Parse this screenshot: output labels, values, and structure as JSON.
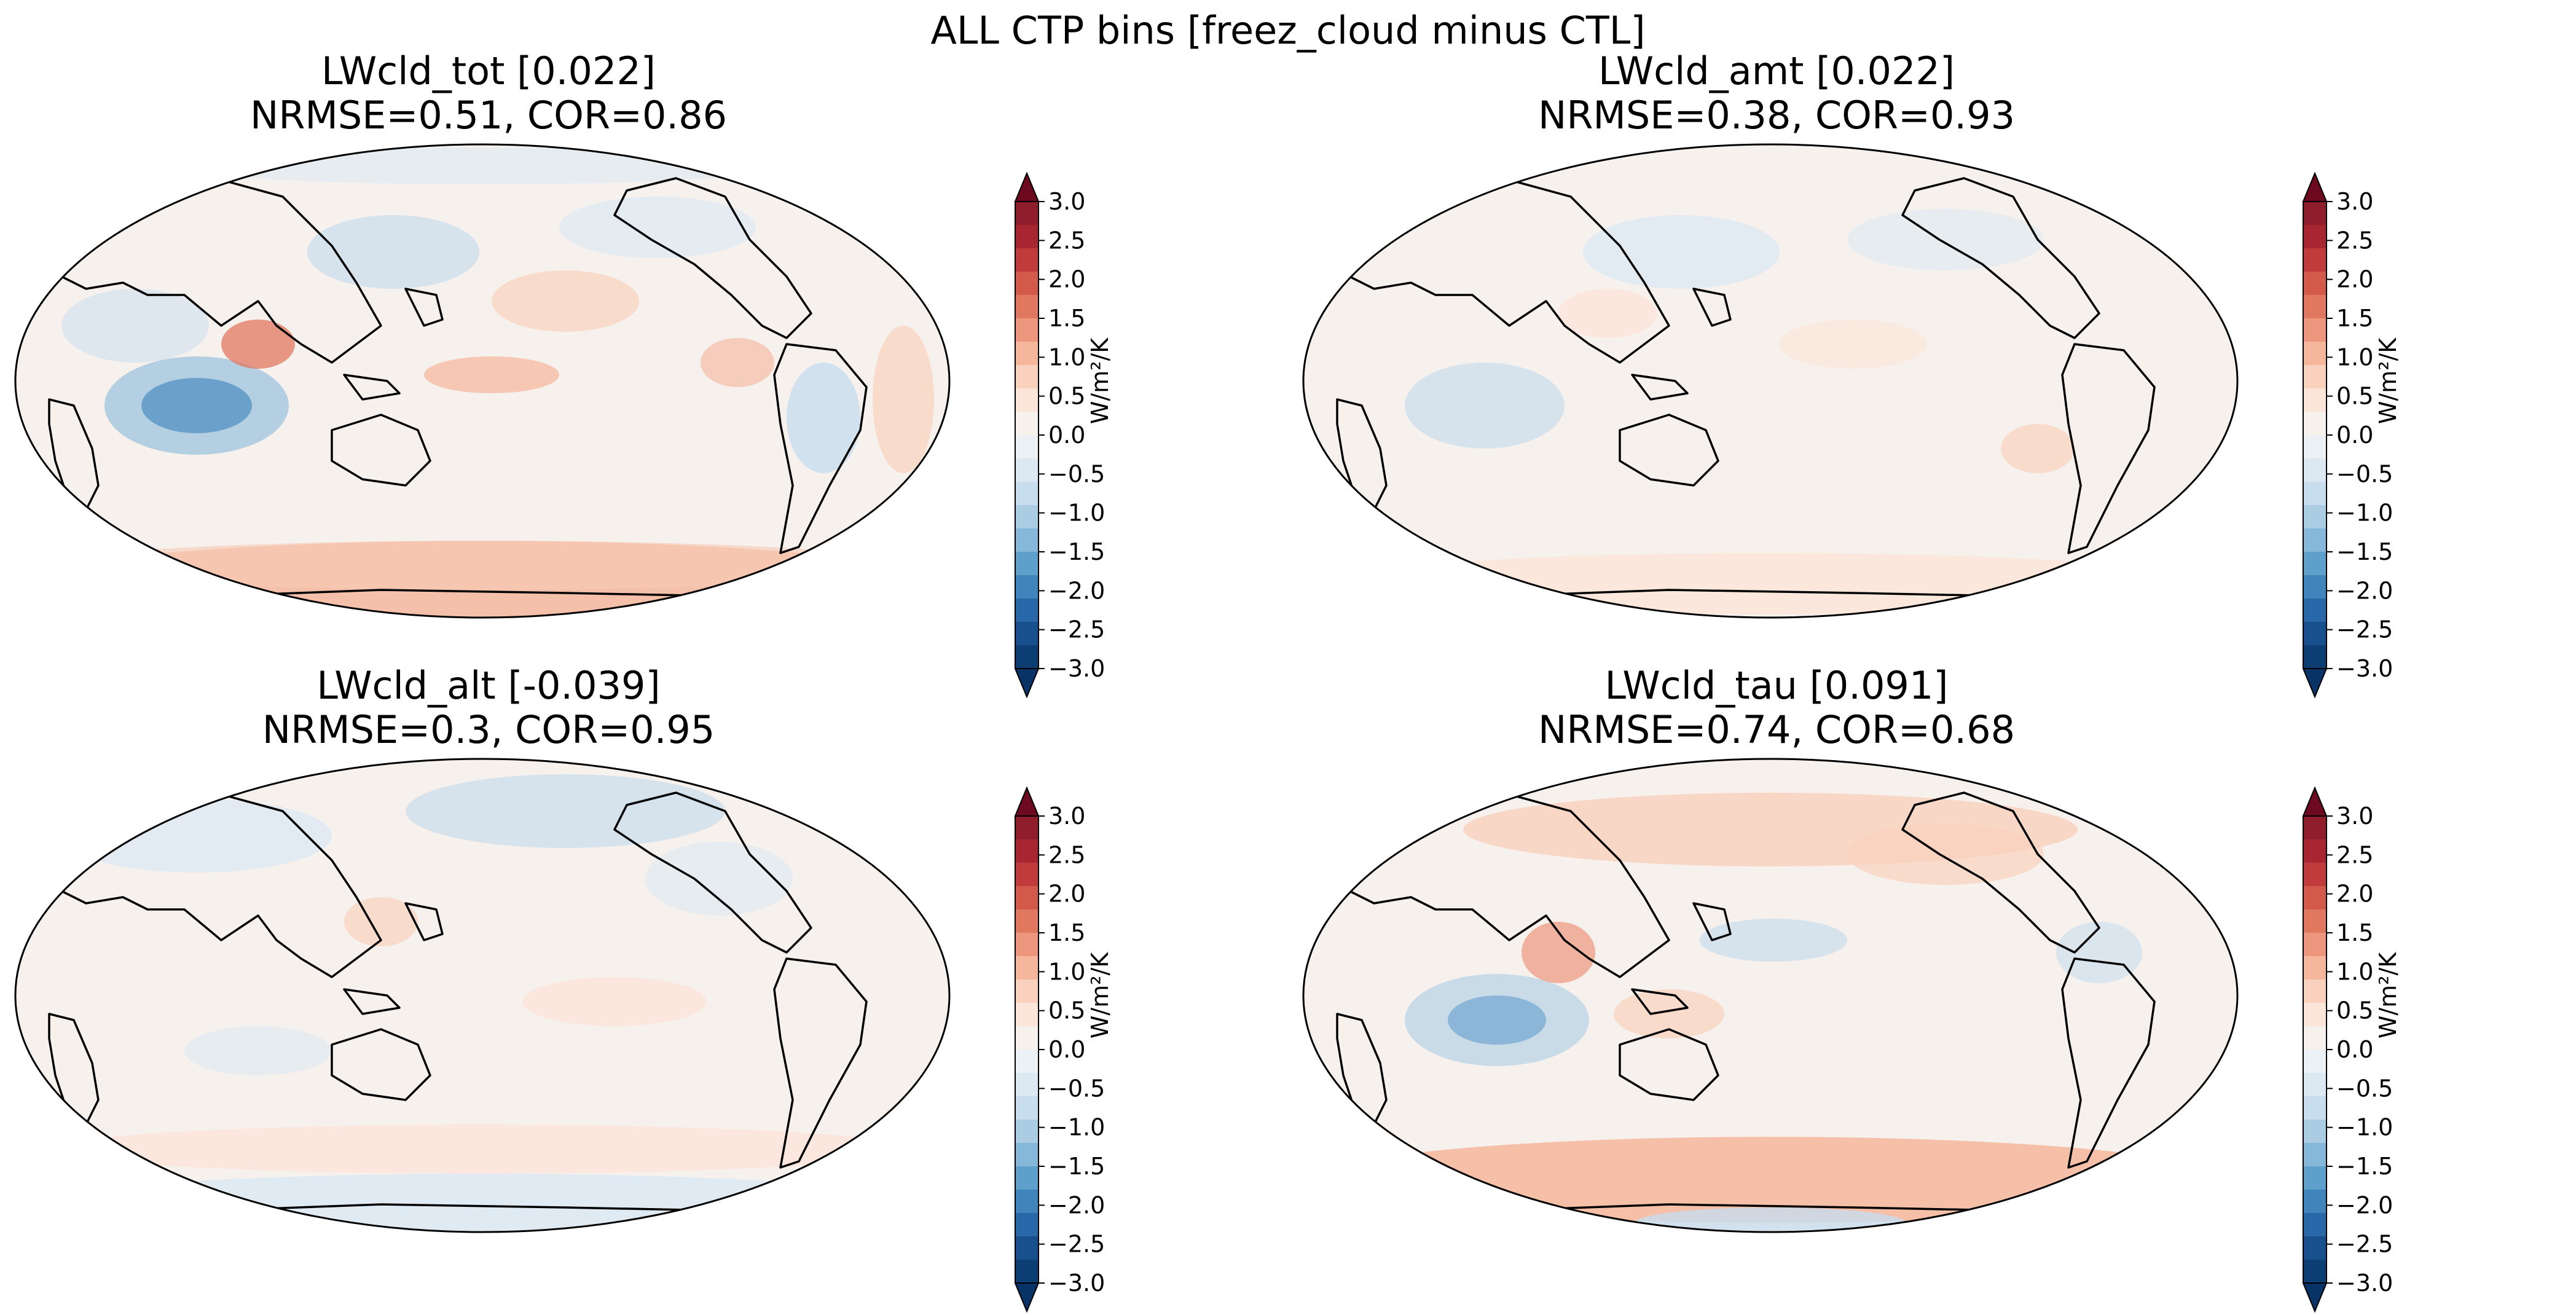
{
  "figure_title": "ALL CTP bins [freez_cloud minus CTL]",
  "colorbar": {
    "unit_label": "W/m²/K",
    "levels": [
      3.0,
      2.5,
      2.0,
      1.5,
      1.0,
      0.5,
      0.0,
      -0.5,
      -1.0,
      -1.5,
      -2.0,
      -2.5,
      -3.0
    ],
    "tick_labels": [
      "3.0",
      "2.5",
      "2.0",
      "1.5",
      "1.0",
      "0.5",
      "0.0",
      "−0.5",
      "−1.0",
      "−1.5",
      "−2.0",
      "−2.5",
      "−3.0"
    ],
    "colors_top_to_bottom": [
      "#8f1d2c",
      "#a82532",
      "#c13b3c",
      "#d35a4a",
      "#e0775f",
      "#ec977d",
      "#f5b69b",
      "#f9d1bd",
      "#fbe5d8",
      "#f7f1ee",
      "#ecf1f5",
      "#dce9f2",
      "#c8dded",
      "#abcde4",
      "#86b9d9",
      "#5f9fcb",
      "#3f84bb",
      "#2968a8",
      "#18508e",
      "#0c3d73"
    ],
    "extend_max_color": "#6d0a1f",
    "extend_min_color": "#073366"
  },
  "panels": [
    {
      "title": "LWcld_tot [0.022]",
      "stats": "NRMSE=0.51, COR=0.86"
    },
    {
      "title": "LWcld_amt [0.022]",
      "stats": "NRMSE=0.38, COR=0.93"
    },
    {
      "title": "LWcld_alt [-0.039]",
      "stats": "NRMSE=0.3, COR=0.95"
    },
    {
      "title": "LWcld_tau [0.091]",
      "stats": "NRMSE=0.74, COR=0.68"
    }
  ]
}
